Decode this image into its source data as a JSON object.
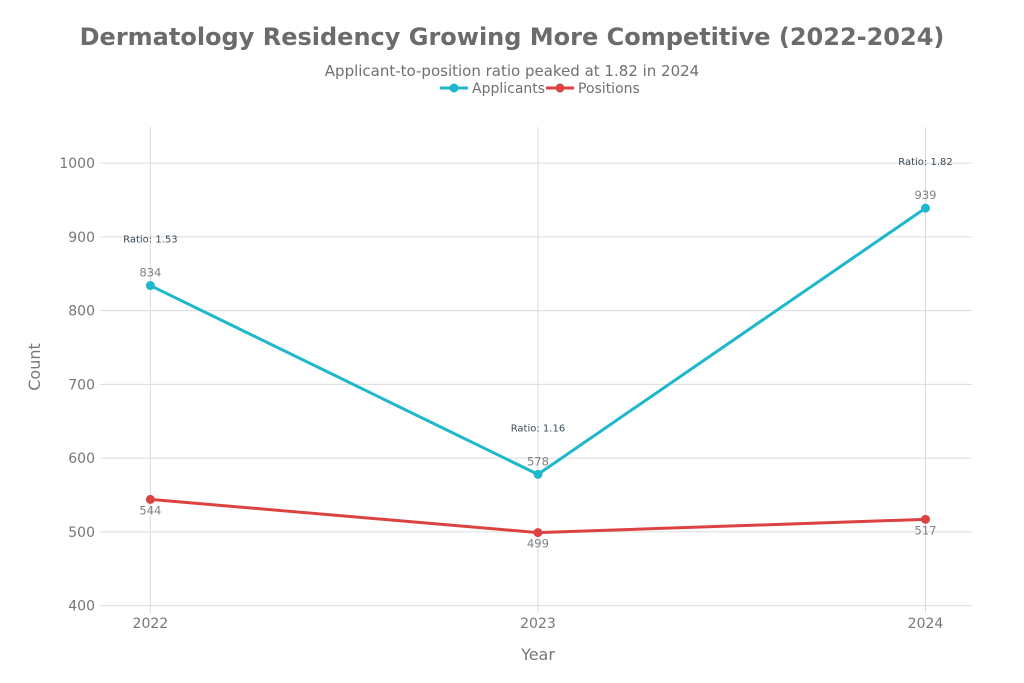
{
  "chart_data": {
    "type": "line",
    "title": "Dermatology Residency Growing More Competitive (2022-2024)",
    "subtitle": "Applicant-to-position ratio peaked at 1.82 in 2024",
    "xlabel": "Year",
    "ylabel": "Count",
    "categories": [
      "2022",
      "2023",
      "2024"
    ],
    "x": [
      2022,
      2023,
      2024
    ],
    "xlim": [
      2021.87,
      2024.12
    ],
    "ylim": [
      390,
      1049
    ],
    "yticks": [
      400,
      500,
      600,
      700,
      800,
      900,
      1000
    ],
    "grid": true,
    "legend_placement": "top-center",
    "series": [
      {
        "name": "Applicants",
        "values": [
          834,
          578,
          939
        ],
        "color": "#1fb7cc",
        "label_position": "above"
      },
      {
        "name": "Positions",
        "values": [
          544,
          499,
          517
        ],
        "color": "#dc4242",
        "label_position": "below"
      }
    ],
    "annotations": [
      "Ratio: 1.53",
      "Ratio: 1.16",
      "Ratio: 1.82"
    ]
  }
}
